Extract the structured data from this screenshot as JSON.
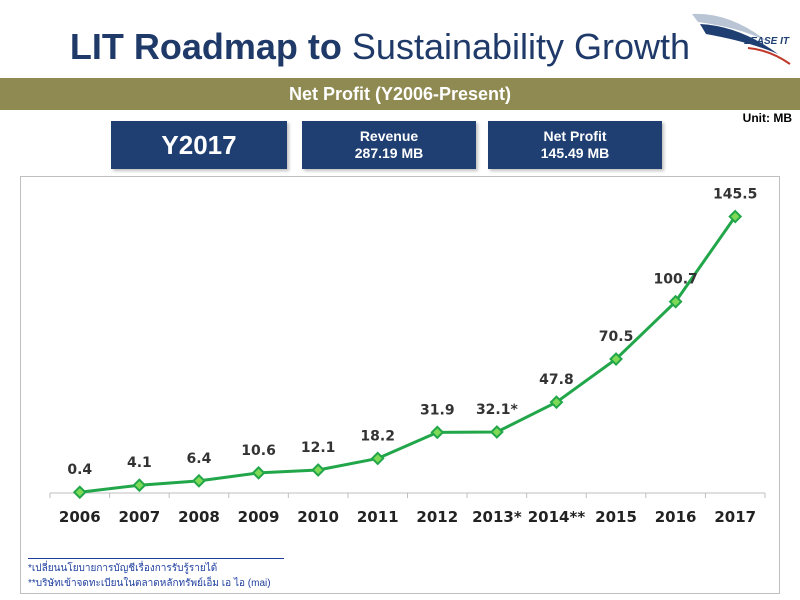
{
  "header": {
    "title_bold": "LIT Roadmap to",
    "title_light": "Sustainability Growth",
    "logo_text": "LEASE IT"
  },
  "band": {
    "text": "Net Profit (Y2006-Present)"
  },
  "unit": "Unit: MB",
  "summary": {
    "year": "Y2017",
    "revenue_label": "Revenue",
    "revenue_value": "287.19 MB",
    "profit_label": "Net Profit",
    "profit_value": "145.49 MB"
  },
  "notes": {
    "note1": "*เปลี่ยนนโยบายการบัญชีเรื่องการรับรู้รายได้",
    "note2": "**บริษัทเข้าจดทะเบียนในตลาดหลักทรัพย์เอ็ม เอ ไอ (mai)"
  },
  "colors": {
    "line": "#22a64a",
    "marker_fill": "#7ed957",
    "band": "#8f8a52",
    "box": "#1f3f73",
    "title": "#1f3a68"
  },
  "chart_data": {
    "type": "line",
    "title": "Net Profit (Y2006-Present)",
    "xlabel": "",
    "ylabel": "",
    "unit": "MB",
    "categories": [
      "2006",
      "2007",
      "2008",
      "2009",
      "2010",
      "2011",
      "2012",
      "2013*",
      "2014**",
      "2015",
      "2016",
      "2017"
    ],
    "values": [
      0.4,
      4.1,
      6.4,
      10.6,
      12.1,
      18.2,
      31.9,
      32.1,
      47.8,
      70.5,
      100.7,
      145.5
    ],
    "labels": [
      "0.4",
      "4.1",
      "6.4",
      "10.6",
      "12.1",
      "18.2",
      "31.9",
      "32.1*",
      "47.8",
      "70.5",
      "100.7",
      "145.5"
    ],
    "ylim": [
      0,
      150
    ],
    "grid": false,
    "legend": "none"
  }
}
